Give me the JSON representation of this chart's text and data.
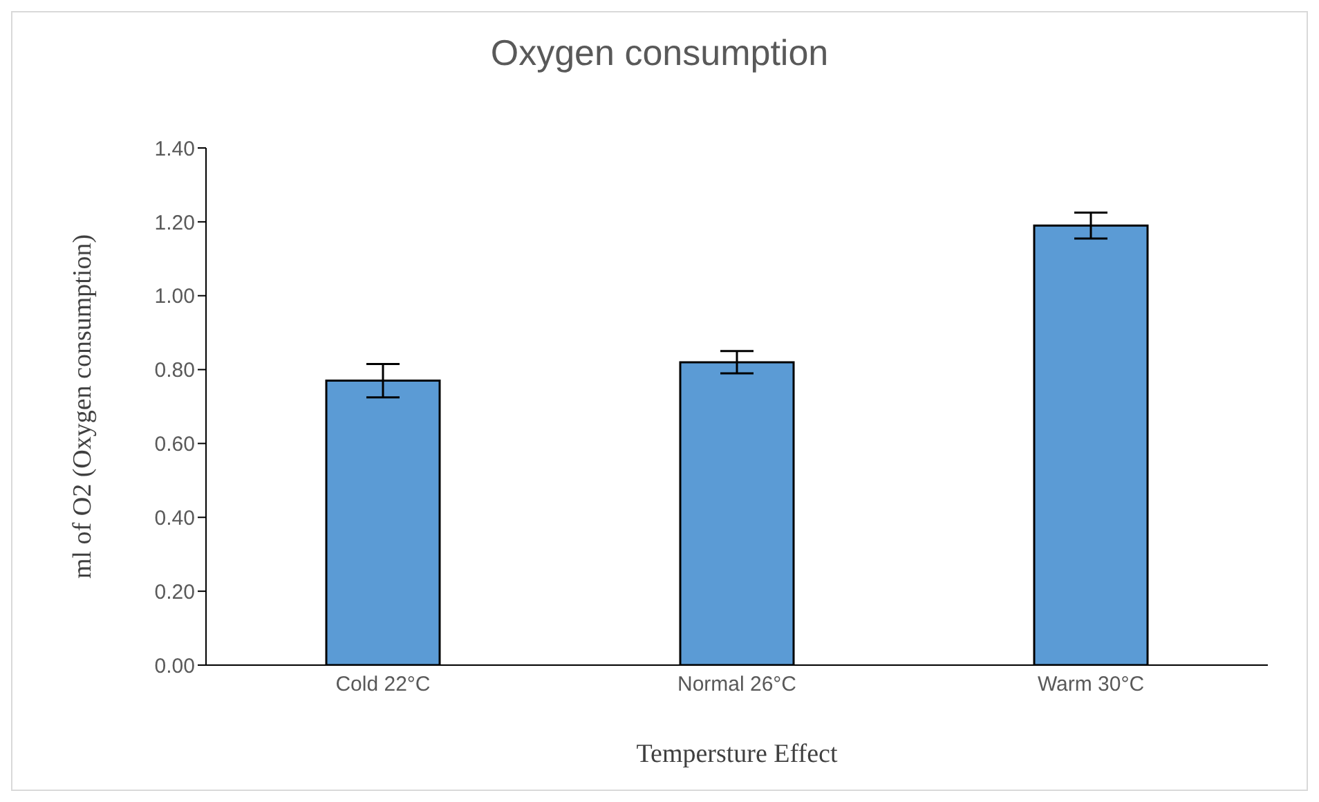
{
  "chart_data": {
    "type": "bar",
    "title": "Oxygen consumption",
    "xlabel": "Tempersture Effect",
    "ylabel": "ml of O2 (Oxygen consumption)",
    "categories": [
      "Cold 22°C",
      "Normal 26°C",
      "Warm 30°C"
    ],
    "values": [
      0.77,
      0.82,
      1.19
    ],
    "errors": [
      0.045,
      0.03,
      0.035
    ],
    "colors": [
      "#5b9bd5",
      "#5b9bd5",
      "#5b9bd5"
    ],
    "ylim": [
      0,
      1.4
    ],
    "yticks": [
      {
        "value": 0,
        "label": "0.00"
      },
      {
        "value": 0.2,
        "label": "0.20"
      },
      {
        "value": 0.4,
        "label": "0.40"
      },
      {
        "value": 0.6,
        "label": "0.60"
      },
      {
        "value": 0.8,
        "label": "0.80"
      },
      {
        "value": 1,
        "label": "1.00"
      },
      {
        "value": 1.2,
        "label": "1.20"
      },
      {
        "value": 1.4,
        "label": "1.40"
      }
    ],
    "grid": false,
    "legend": false
  }
}
